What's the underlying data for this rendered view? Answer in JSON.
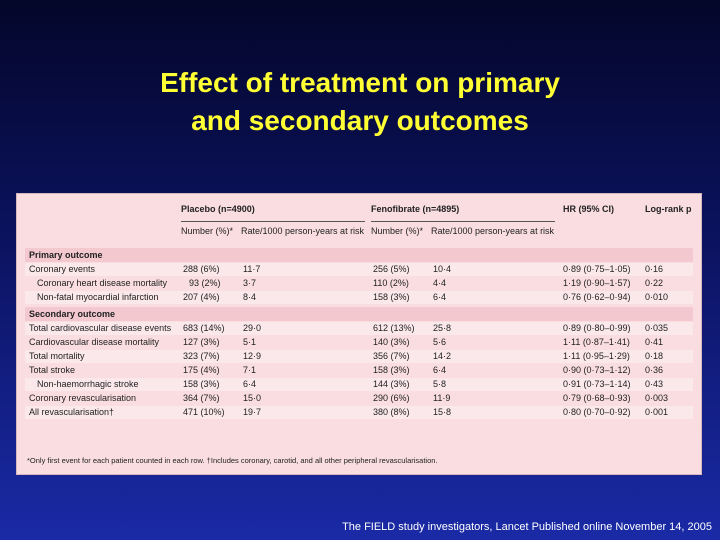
{
  "slide": {
    "title_line1": "Effect of treatment on primary",
    "title_line2": "and secondary outcomes",
    "citation": "The FIELD study investigators, Lancet  Published online November 14, 2005"
  },
  "table": {
    "groups": {
      "placebo": "Placebo (n=4900)",
      "fenofibrate": "Fenofibrate (n=4895)",
      "hr": "HR (95% CI)",
      "logrank": "Log-rank p"
    },
    "subheaders": {
      "placebo_number": "Number (%)*",
      "placebo_rate": "Rate/1000 person-years at risk",
      "feno_number": "Number (%)*",
      "feno_rate": "Rate/1000 person-years at risk"
    },
    "sections": [
      {
        "heading": "Primary outcome",
        "rows": [
          {
            "label": "Coronary events",
            "pn": "288 (6%)",
            "pr": "11·7",
            "fn": "256 (5%)",
            "fr": "10·4",
            "hr": "0·89 (0·75–1·05)",
            "p": "0·16"
          },
          {
            "label": "Coronary heart disease mortality",
            "pn": "93 (2%)",
            "pr": "3·7",
            "fn": "110 (2%)",
            "fr": "4·4",
            "hr": "1·19 (0·90–1·57)",
            "p": "0·22"
          },
          {
            "label": "Non-fatal myocardial infarction",
            "pn": "207 (4%)",
            "pr": "8·4",
            "fn": "158 (3%)",
            "fr": "6·4",
            "hr": "0·76 (0·62–0·94)",
            "p": "0·010"
          }
        ]
      },
      {
        "heading": "Secondary outcome",
        "rows": [
          {
            "label": "Total cardiovascular disease events",
            "pn": "683 (14%)",
            "pr": "29·0",
            "fn": "612 (13%)",
            "fr": "25·8",
            "hr": "0·89 (0·80–0·99)",
            "p": "0·035"
          },
          {
            "label": "Cardiovascular disease mortality",
            "pn": "127 (3%)",
            "pr": "5·1",
            "fn": "140 (3%)",
            "fr": "5·6",
            "hr": "1·11 (0·87–1·41)",
            "p": "0·41"
          },
          {
            "label": "Total mortality",
            "pn": "323 (7%)",
            "pr": "12·9",
            "fn": "356 (7%)",
            "fr": "14·2",
            "hr": "1·11 (0·95–1·29)",
            "p": "0·18"
          },
          {
            "label": "Total stroke",
            "pn": "175 (4%)",
            "pr": "7·1",
            "fn": "158 (3%)",
            "fr": "6·4",
            "hr": "0·90 (0·73–1·12)",
            "p": "0·36"
          },
          {
            "label": "Non-haemorrhagic stroke",
            "pn": "158 (3%)",
            "pr": "6·4",
            "fn": "144 (3%)",
            "fr": "5·8",
            "hr": "0·91 (0·73–1·14)",
            "p": "0·43"
          },
          {
            "label": "Coronary revascularisation",
            "pn": "364 (7%)",
            "pr": "15·0",
            "fn": "290 (6%)",
            "fr": "11·9",
            "hr": "0·79 (0·68–0·93)",
            "p": "0·003"
          },
          {
            "label": "All revascularisation†",
            "pn": "471 (10%)",
            "pr": "19·7",
            "fn": "380 (8%)",
            "fr": "15·8",
            "hr": "0·80 (0·70–0·92)",
            "p": "0·001"
          }
        ]
      }
    ],
    "footnote": "*Only first event for each patient counted in each row. †Includes coronary, carotid, and all other peripheral revascularisation."
  }
}
